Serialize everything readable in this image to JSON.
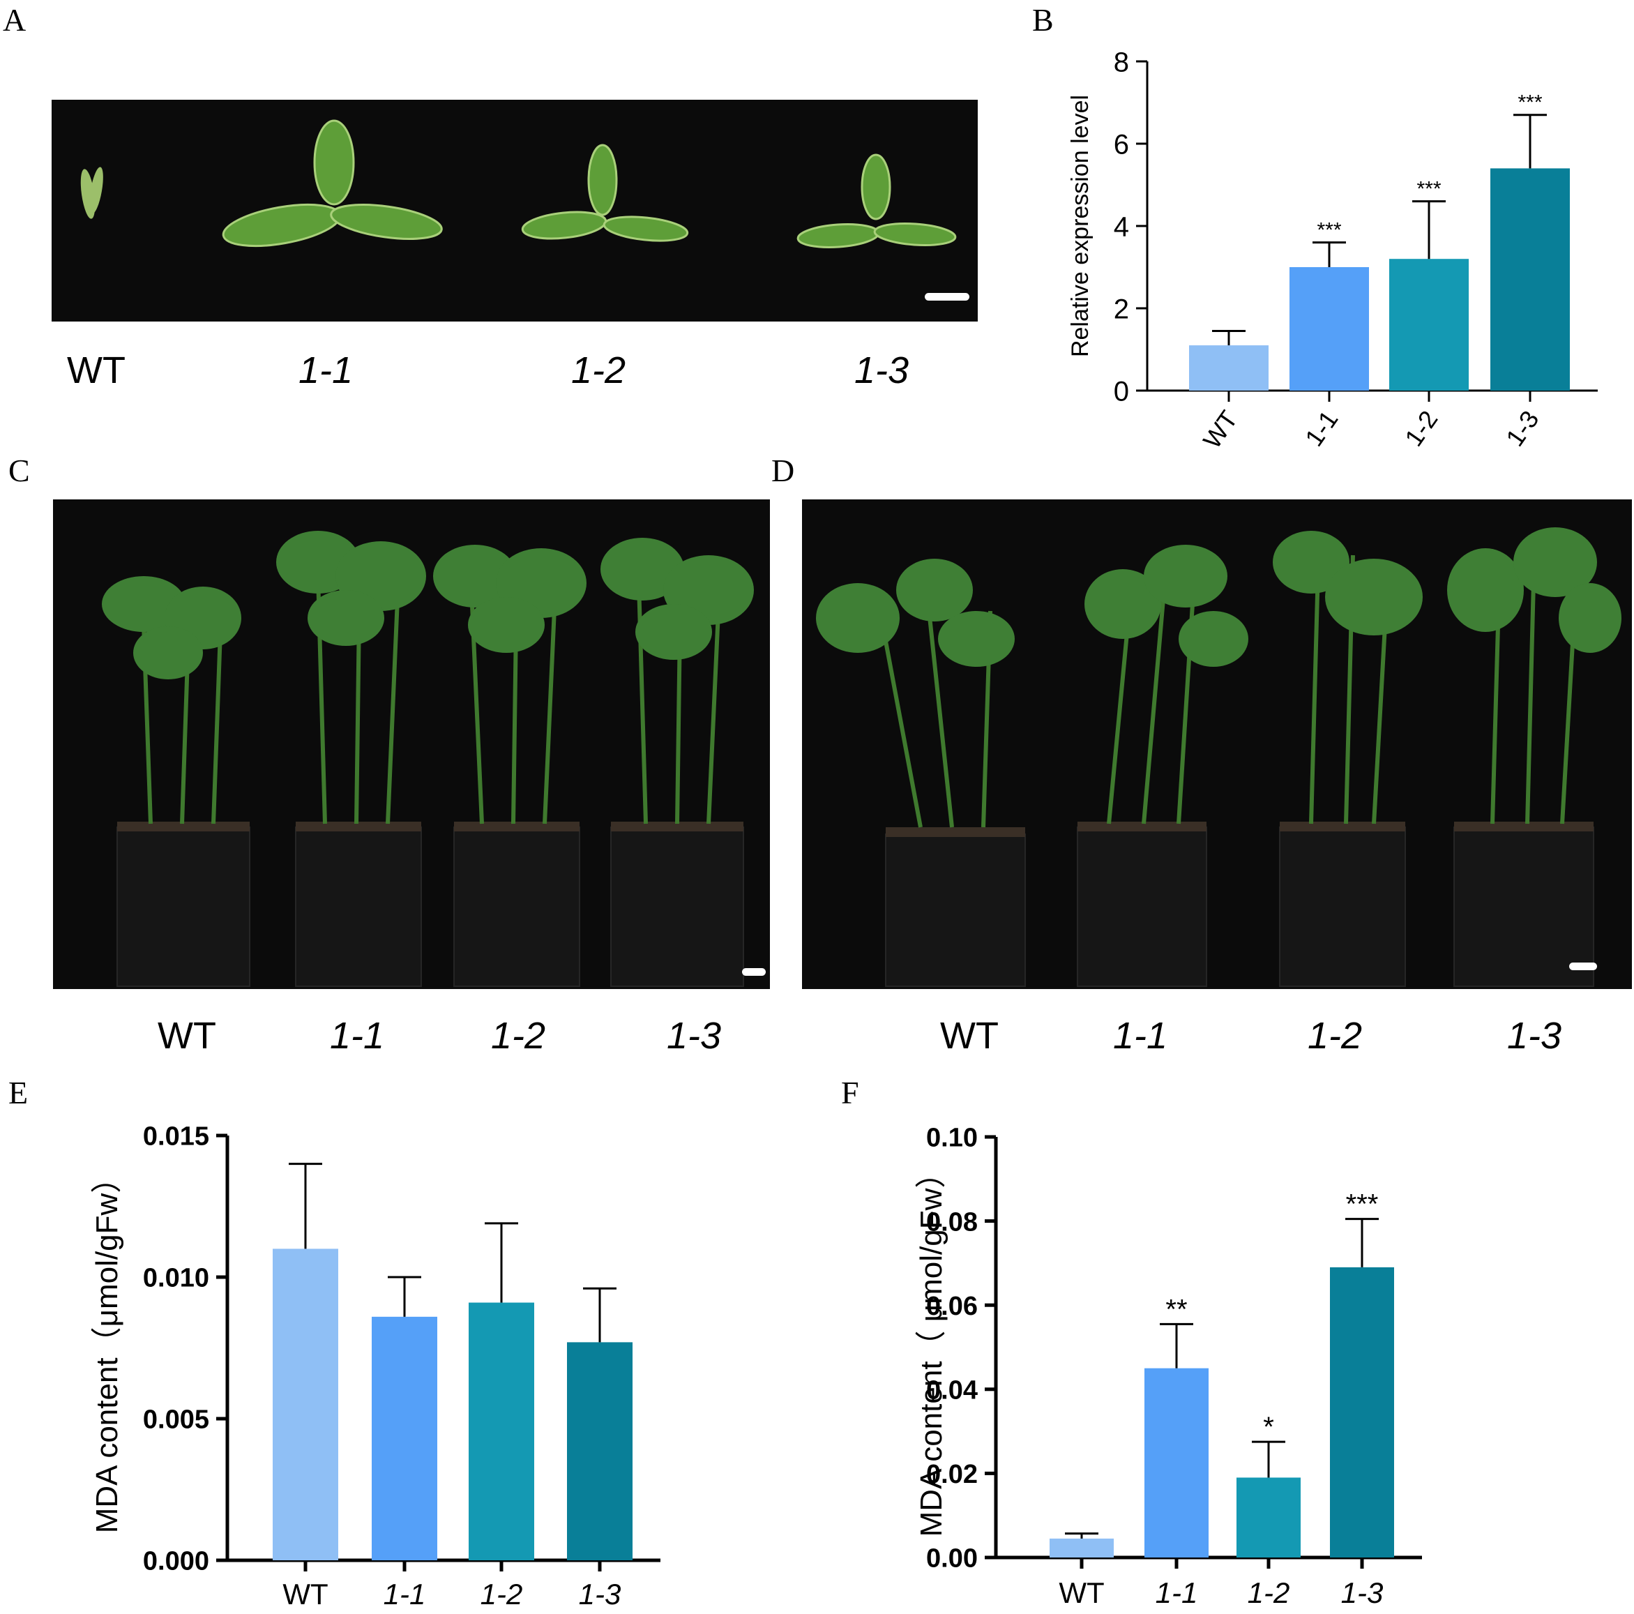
{
  "panels": {
    "a": "A",
    "b": "B",
    "c": "C",
    "d": "D",
    "e": "E",
    "f": "F"
  },
  "genotypes": [
    "WT",
    "1-1",
    "1-2",
    "1-3"
  ],
  "photos": {
    "a": {
      "content": "detached trifoliate leaves on black background",
      "background": "#0b0b0b"
    },
    "c": {
      "content": "soybean plants in pots on black background",
      "background": "#0b0b0b"
    },
    "d": {
      "content": "soybean plants in pots (wilting) on black background",
      "background": "#0b0b0b"
    }
  },
  "colors": {
    "WT": "#8fbff5",
    "1-1": "#55a0f8",
    "1-2": "#1499b3",
    "1-3": "#097f98",
    "leaf": "#5a9a36",
    "pot": "#141414"
  },
  "chart_data": [
    {
      "panel": "B",
      "type": "bar",
      "categories": [
        "WT",
        "1-1",
        "1-2",
        "1-3"
      ],
      "values": [
        1.1,
        3.0,
        3.2,
        5.4
      ],
      "errors": [
        0.35,
        0.6,
        1.4,
        1.3
      ],
      "significance": [
        "",
        "***",
        "***",
        "***"
      ],
      "ylabel": "Relative expression level",
      "ylim": [
        0,
        8
      ],
      "yticks": [
        "0",
        "2",
        "4",
        "6",
        "8"
      ],
      "tick_labels_rotated": true,
      "italic_categories": false,
      "grid": false
    },
    {
      "panel": "E",
      "type": "bar",
      "categories": [
        "WT",
        "1-1",
        "1-2",
        "1-3"
      ],
      "values": [
        0.011,
        0.0086,
        0.0091,
        0.0077
      ],
      "errors": [
        0.003,
        0.0014,
        0.0028,
        0.0019
      ],
      "significance": [
        "",
        "",
        "",
        ""
      ],
      "ylabel": "MDA content（μmol/gFw）",
      "ylim": [
        0,
        0.015
      ],
      "yticks": [
        "0.000",
        "0.005",
        "0.010",
        "0.015"
      ],
      "tick_labels_rotated": false,
      "italic_categories": true,
      "grid": false
    },
    {
      "panel": "F",
      "type": "bar",
      "categories": [
        "WT",
        "1-1",
        "1-2",
        "1-3"
      ],
      "values": [
        0.0045,
        0.045,
        0.019,
        0.069
      ],
      "errors": [
        0.0012,
        0.0105,
        0.0085,
        0.0115
      ],
      "significance": [
        "",
        "**",
        "*",
        "***"
      ],
      "ylabel": "MDA content（ μmol/gFw）",
      "ylim": [
        0,
        0.1
      ],
      "yticks": [
        "0.00",
        "0.02",
        "0.04",
        "0.06",
        "0.08",
        "0.10"
      ],
      "tick_labels_rotated": false,
      "italic_categories": true,
      "grid": false
    }
  ]
}
